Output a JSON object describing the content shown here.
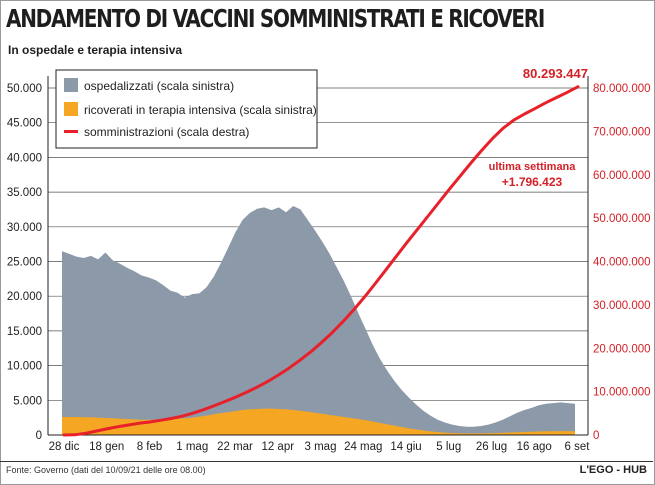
{
  "header": {
    "title": "Andamento di vaccini somministrati e ricoveri",
    "subtitle": "In ospedale e terapia intensiva"
  },
  "footer": {
    "source": "Fonte: Governo (dati del 10/09/21 delle ore 08.00)",
    "brand": "L'EGO - HUB"
  },
  "chart_data": {
    "type": "area",
    "x_ticks": [
      "28 dic",
      "18 gen",
      "8 feb",
      "1 mag",
      "22 mar",
      "12 apr",
      "3 mag",
      "24 mag",
      "14 giu",
      "5 lug",
      "26 lug",
      "16 ago",
      "6 set"
    ],
    "ylim_left": [
      0,
      50000
    ],
    "ylim_right": [
      0,
      80000000
    ],
    "y_ticks_left": [
      0,
      5000,
      10000,
      15000,
      20000,
      25000,
      30000,
      35000,
      40000,
      45000,
      50000
    ],
    "y_tick_labels_left": [
      "0",
      "5.000",
      "10.000",
      "15.000",
      "20.000",
      "25.000",
      "30.000",
      "35.000",
      "40.000",
      "45.000",
      "50.000"
    ],
    "y_ticks_right": [
      0,
      10000000,
      20000000,
      30000000,
      40000000,
      50000000,
      60000000,
      70000000,
      80000000
    ],
    "y_tick_labels_right": [
      "0",
      "10.000.000",
      "20.000.000",
      "30.000.000",
      "40.000.000",
      "50.000.000",
      "60.000.000",
      "70.000.000",
      "80.000.000"
    ],
    "grid": true,
    "legend_position": "top-left",
    "colors": {
      "ospedalizzati": "#8c99a9",
      "terapia_intensiva": "#f5a623",
      "somministrazioni": "#e8202a",
      "right_axis": "#d42027"
    },
    "series": [
      {
        "key": "ospedalizzati",
        "name": "ospedalizzati (scala sinistra)",
        "axis": "left",
        "values": [
          26500,
          26100,
          25700,
          25500,
          25800,
          25300,
          26300,
          25200,
          24700,
          24100,
          23600,
          23000,
          22700,
          22300,
          21600,
          20800,
          20500,
          19800,
          20300,
          20400,
          21300,
          22800,
          24800,
          27000,
          29200,
          31000,
          32000,
          32600,
          32800,
          32400,
          32800,
          32100,
          33000,
          32500,
          31000,
          29500,
          27900,
          26200,
          24200,
          22200,
          20000,
          17600,
          15300,
          13000,
          11000,
          9300,
          7800,
          6500,
          5400,
          4400,
          3500,
          2800,
          2200,
          1800,
          1500,
          1300,
          1200,
          1200,
          1300,
          1500,
          1800,
          2200,
          2700,
          3200,
          3600,
          3900,
          4300,
          4500,
          4600,
          4700,
          4600,
          4500
        ]
      },
      {
        "key": "terapia_intensiva",
        "name": "ricoverati in terapia intensiva (scala sinistra)",
        "axis": "left",
        "values": [
          2600,
          2600,
          2600,
          2550,
          2550,
          2500,
          2450,
          2400,
          2350,
          2300,
          2250,
          2200,
          2200,
          2200,
          2250,
          2300,
          2350,
          2400,
          2500,
          2650,
          2800,
          3000,
          3150,
          3300,
          3450,
          3600,
          3700,
          3750,
          3800,
          3800,
          3750,
          3700,
          3600,
          3500,
          3350,
          3200,
          3050,
          2900,
          2750,
          2600,
          2450,
          2300,
          2150,
          1950,
          1750,
          1550,
          1350,
          1150,
          950,
          800,
          650,
          520,
          420,
          340,
          280,
          240,
          220,
          220,
          230,
          250,
          280,
          320,
          360,
          400,
          440,
          470,
          500,
          530,
          550,
          560,
          560,
          550
        ]
      },
      {
        "key": "somministrazioni",
        "name": "somministrazioni (scala destra)",
        "axis": "right",
        "values": [
          0,
          50000,
          400000,
          900000,
          1400000,
          1900000,
          2300000,
          2700000,
          3000000,
          3400000,
          3800000,
          4300000,
          5000000,
          5800000,
          6700000,
          7700000,
          8700000,
          9800000,
          11000000,
          12300000,
          13800000,
          15400000,
          17200000,
          19100000,
          21200000,
          23500000,
          26000000,
          28700000,
          31600000,
          34700000,
          37900000,
          41100000,
          44300000,
          47400000,
          50500000,
          53600000,
          56700000,
          59700000,
          62700000,
          65600000,
          68300000,
          70700000,
          72600000,
          74000000,
          75300000,
          76600000,
          77800000,
          79000000,
          80293447
        ]
      }
    ],
    "annotations": {
      "total_label": "80.293.447",
      "week_label": "ultima settimana",
      "week_value": "+1.796.423"
    }
  }
}
